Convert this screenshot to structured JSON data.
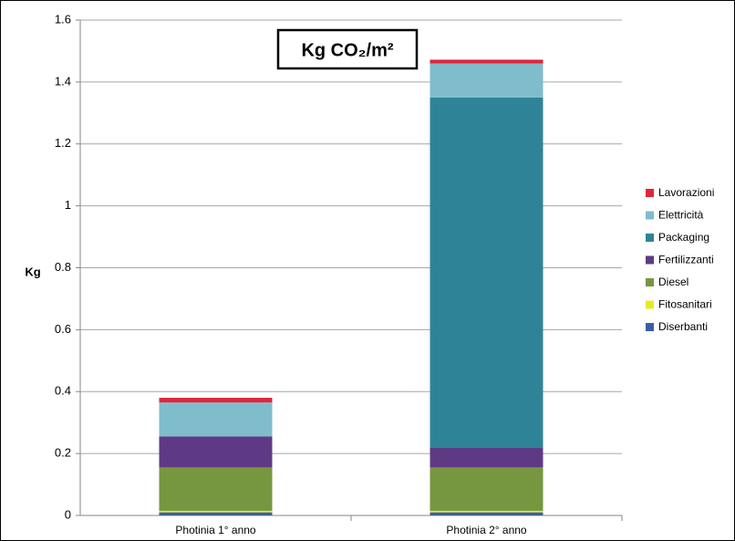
{
  "chart_data": {
    "type": "bar",
    "stacked": true,
    "title": "Kg CO₂/m²",
    "ylabel": "Kg",
    "xlabel": "",
    "ylim": [
      0,
      1.6
    ],
    "yticks": [
      "0",
      "0.2",
      "0.4",
      "0.6",
      "0.8",
      "1",
      "1.2",
      "1.4",
      "1.6"
    ],
    "categories": [
      "Photinia 1° anno",
      "Photinia 2° anno"
    ],
    "grid": true,
    "legend_position": "right",
    "series": [
      {
        "name": "Diserbanti",
        "color": "#3b5ea5",
        "values": [
          0.01,
          0.01
        ]
      },
      {
        "name": "Fitosanitari",
        "color": "#e8e82a",
        "values": [
          0.005,
          0.005
        ]
      },
      {
        "name": "Diesel",
        "color": "#76973f",
        "values": [
          0.14,
          0.14
        ]
      },
      {
        "name": "Fertilizzanti",
        "color": "#5f3a84",
        "values": [
          0.1,
          0.065
        ]
      },
      {
        "name": "Packaging",
        "color": "#2e8496",
        "values": [
          0,
          1.13
        ]
      },
      {
        "name": "Elettricità",
        "color": "#7fbccc",
        "values": [
          0.11,
          0.11
        ]
      },
      {
        "name": "Lavorazioni",
        "color": "#e0253b",
        "values": [
          0.015,
          0.012
        ]
      }
    ]
  }
}
